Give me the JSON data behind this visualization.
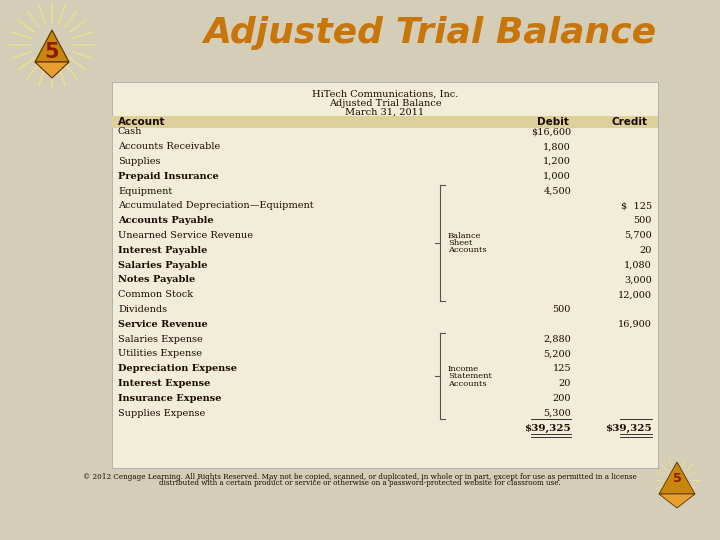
{
  "title": "Adjusted Trial Balance",
  "title_color": "#C8760A",
  "bg_color": "#D4CDB8",
  "table_bg": "#F2EDD8",
  "header_bg": "#DDD09A",
  "company_name": "HiTech Communications, Inc.",
  "subtitle1": "Adjusted Trial Balance",
  "subtitle2": "March 31, 2011",
  "col_headers": [
    "Account",
    "Debit",
    "Credit"
  ],
  "accounts": [
    "Cash",
    "Accounts Receivable",
    "Supplies",
    "Prepaid Insurance",
    "Equipment",
    "Accumulated Depreciation—Equipment",
    "Accounts Payable",
    "Unearned Service Revenue",
    "Interest Payable",
    "Salaries Payable",
    "Notes Payable",
    "Common Stock",
    "Dividends",
    "Service Revenue",
    "Salaries Expense",
    "Utilities Expense",
    "Depreciation Expense",
    "Interest Expense",
    "Insurance Expense",
    "Supplies Expense"
  ],
  "debits": [
    "$16,600",
    "1,800",
    "1,200",
    "1,000",
    "4,500",
    "",
    "",
    "",
    "",
    "",
    "",
    "",
    "500",
    "",
    "2,880",
    "5,200",
    "125",
    "20",
    "200",
    "5,300"
  ],
  "credits": [
    "",
    "",
    "",
    "",
    "",
    "$  125",
    "500",
    "5,700",
    "20",
    "1,080",
    "3,000",
    "12,000",
    "",
    "16,900",
    "",
    "",
    "",
    "",
    "",
    ""
  ],
  "total_debit": "$39,325",
  "total_credit": "$39,325",
  "bold_accounts": [
    3,
    6,
    8,
    9,
    10,
    13,
    16,
    17,
    18
  ],
  "balance_sheet_label": [
    "Balance",
    "Sheet",
    "Accounts"
  ],
  "income_stmt_label": [
    "Income",
    "Statement",
    "Accounts"
  ],
  "footer": "© 2012 Cengage Learning. All Rights Reserved. May not be copied, scanned, or duplicated, in whole or in part, except for use as permitted in a license",
  "footer2": "distributed with a certain product or service or otherwise on a password-protected website for classroom use."
}
